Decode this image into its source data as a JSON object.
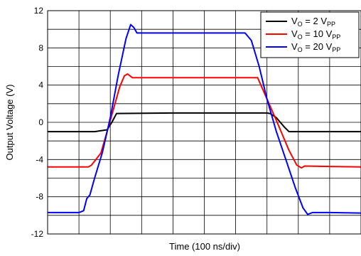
{
  "chart_data": {
    "type": "line",
    "xlabel": "Time (100 ns/div)",
    "ylabel": "Output Voltage (V)",
    "xlim": [
      0,
      10
    ],
    "ylim": [
      -12,
      12
    ],
    "x_divisions": 10,
    "y_divisions": 12,
    "y_ticks": [
      12,
      8,
      4,
      0,
      -4,
      -8,
      -12
    ],
    "y_tick_labels": [
      "12",
      "8",
      "4",
      "0",
      "-4",
      "-8",
      "-12"
    ],
    "grid": true,
    "legend_position": "top-right",
    "series": [
      {
        "name_main": "V",
        "name_sub1": "O",
        "name_mid": " = 2 V",
        "name_sub2": "PP",
        "color": "#000000",
        "x": [
          0,
          1.0,
          1.5,
          1.9,
          2.05,
          2.2,
          4.0,
          6.0,
          7.0,
          7.1,
          7.3,
          7.55,
          7.7,
          8.0,
          9.0,
          10
        ],
        "y": [
          -1.0,
          -1.0,
          -1.0,
          -0.8,
          0.0,
          0.95,
          1.0,
          1.0,
          1.0,
          0.95,
          0.5,
          -0.5,
          -1.0,
          -1.0,
          -1.0,
          -1.0
        ]
      },
      {
        "name_main": "V",
        "name_sub1": "O",
        "name_mid": " = 10 V",
        "name_sub2": "PP",
        "color": "#ff0000",
        "x": [
          0,
          1.0,
          1.3,
          1.4,
          1.7,
          2.0,
          2.3,
          2.45,
          2.55,
          2.7,
          3.0,
          5.0,
          6.4,
          6.7,
          7.0,
          7.3,
          7.7,
          7.95,
          8.1,
          8.2,
          9.0,
          10
        ],
        "y": [
          -4.8,
          -4.8,
          -4.8,
          -4.6,
          -3.3,
          0.2,
          3.8,
          5.0,
          5.2,
          4.8,
          4.8,
          4.8,
          4.8,
          4.8,
          2.5,
          0.2,
          -3.0,
          -4.6,
          -4.9,
          -4.7,
          -4.75,
          -4.8
        ],
        "line_width": 2
      },
      {
        "name_main": "V",
        "name_sub1": "O",
        "name_mid": " = 20 V",
        "name_sub2": "PP",
        "color": "#0000ff",
        "x": [
          0,
          1.0,
          1.15,
          1.25,
          1.35,
          1.5,
          1.75,
          2.0,
          2.25,
          2.5,
          2.65,
          2.75,
          2.85,
          3.0,
          5.0,
          6.3,
          6.5,
          6.75,
          7.0,
          7.3,
          7.6,
          7.9,
          8.15,
          8.3,
          8.45,
          9.0,
          10
        ],
        "y": [
          -9.7,
          -9.7,
          -9.5,
          -8.2,
          -7.8,
          -6.0,
          -3.2,
          0.5,
          5.0,
          9.0,
          10.5,
          10.2,
          9.6,
          9.6,
          9.6,
          9.6,
          8.8,
          6.0,
          2.5,
          -1.0,
          -4.0,
          -7.0,
          -9.2,
          -9.9,
          -9.7,
          -9.7,
          -9.75
        ],
        "line_width": 2
      }
    ]
  }
}
